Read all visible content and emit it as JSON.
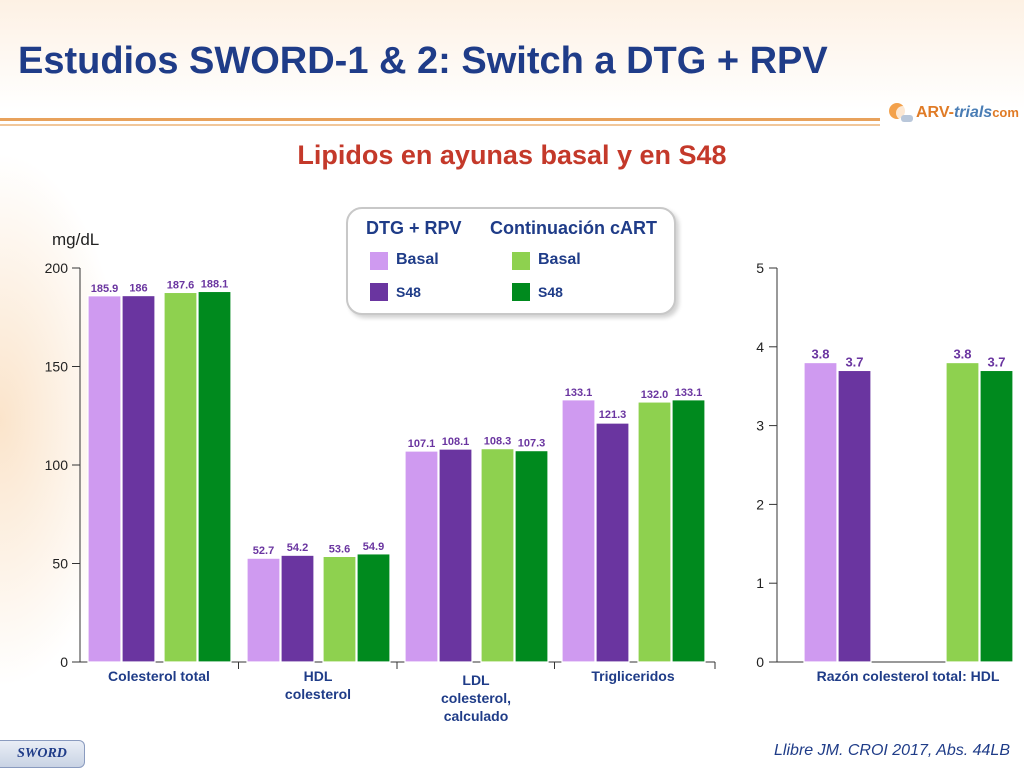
{
  "slide": {
    "title": "Estudios SWORD-1 & 2: Switch a DTG + RPV",
    "subtitle": "Lipidos en ayunas basal y en S48",
    "logo": {
      "part1": "ARV-",
      "part2": "trials",
      "part3": "com"
    },
    "footer_badge": "SWORD",
    "citation": "Llibre JM. CROI 2017, Abs. 44LB"
  },
  "legend": {
    "group1_title": "DTG + RPV",
    "group2_title": "Continuación cART",
    "g1_basal": "Basal",
    "g1_s48": "S48",
    "g2_basal": "Basal",
    "g2_s48": "S48"
  },
  "colors": {
    "dtg_basal": "#cf9af0",
    "dtg_s48": "#6a35a0",
    "cart_basal": "#8ed14f",
    "cart_s48": "#008a1e",
    "title": "#1f3c88",
    "subtitle": "#c4392a",
    "value_label": "#6a35a0"
  },
  "chart_data": [
    {
      "type": "bar",
      "unit_label": "mg/dL",
      "ylim": [
        0,
        200
      ],
      "yticks": [
        "0",
        "50",
        "100",
        "150",
        "200"
      ],
      "categories": [
        [
          "Colesterol total"
        ],
        [
          "HDL",
          "colesterol"
        ],
        [
          "LDL",
          "colesterol,",
          "calculado"
        ],
        [
          "Trigliceridos"
        ]
      ],
      "series": [
        {
          "name": "DTG + RPV Basal",
          "color_key": "dtg_basal",
          "values": [
            185.9,
            52.7,
            107.1,
            133.1
          ],
          "labels": [
            "185.9",
            "52.7",
            "107.1",
            "133.1"
          ]
        },
        {
          "name": "DTG + RPV S48",
          "color_key": "dtg_s48",
          "values": [
            186,
            54.2,
            108.1,
            121.3
          ],
          "labels": [
            "186",
            "54.2",
            "108.1",
            "121.3"
          ]
        },
        {
          "name": "Continuación cART Basal",
          "color_key": "cart_basal",
          "values": [
            187.6,
            53.6,
            108.3,
            132.0
          ],
          "labels": [
            "187.6",
            "53.6",
            "108.3",
            "132.0"
          ]
        },
        {
          "name": "Continuación cART S48",
          "color_key": "cart_s48",
          "values": [
            188.1,
            54.9,
            107.3,
            133.1
          ],
          "labels": [
            "188.1",
            "54.9",
            "107.3",
            "133.1"
          ]
        }
      ]
    },
    {
      "type": "bar",
      "ylim": [
        0,
        5
      ],
      "yticks": [
        "0",
        "1",
        "2",
        "3",
        "4",
        "5"
      ],
      "categories": [
        [
          "Razón colesterol total: HDL"
        ]
      ],
      "series": [
        {
          "name": "DTG + RPV Basal",
          "color_key": "dtg_basal",
          "values": [
            3.8
          ],
          "labels": [
            "3.8"
          ]
        },
        {
          "name": "DTG + RPV S48",
          "color_key": "dtg_s48",
          "values": [
            3.7
          ],
          "labels": [
            "3.7"
          ]
        },
        {
          "name": "Continuación cART Basal",
          "color_key": "cart_basal",
          "values": [
            3.8
          ],
          "labels": [
            "3.8"
          ]
        },
        {
          "name": "Continuación cART S48",
          "color_key": "cart_s48",
          "values": [
            3.7
          ],
          "labels": [
            "3.7"
          ]
        }
      ]
    }
  ]
}
